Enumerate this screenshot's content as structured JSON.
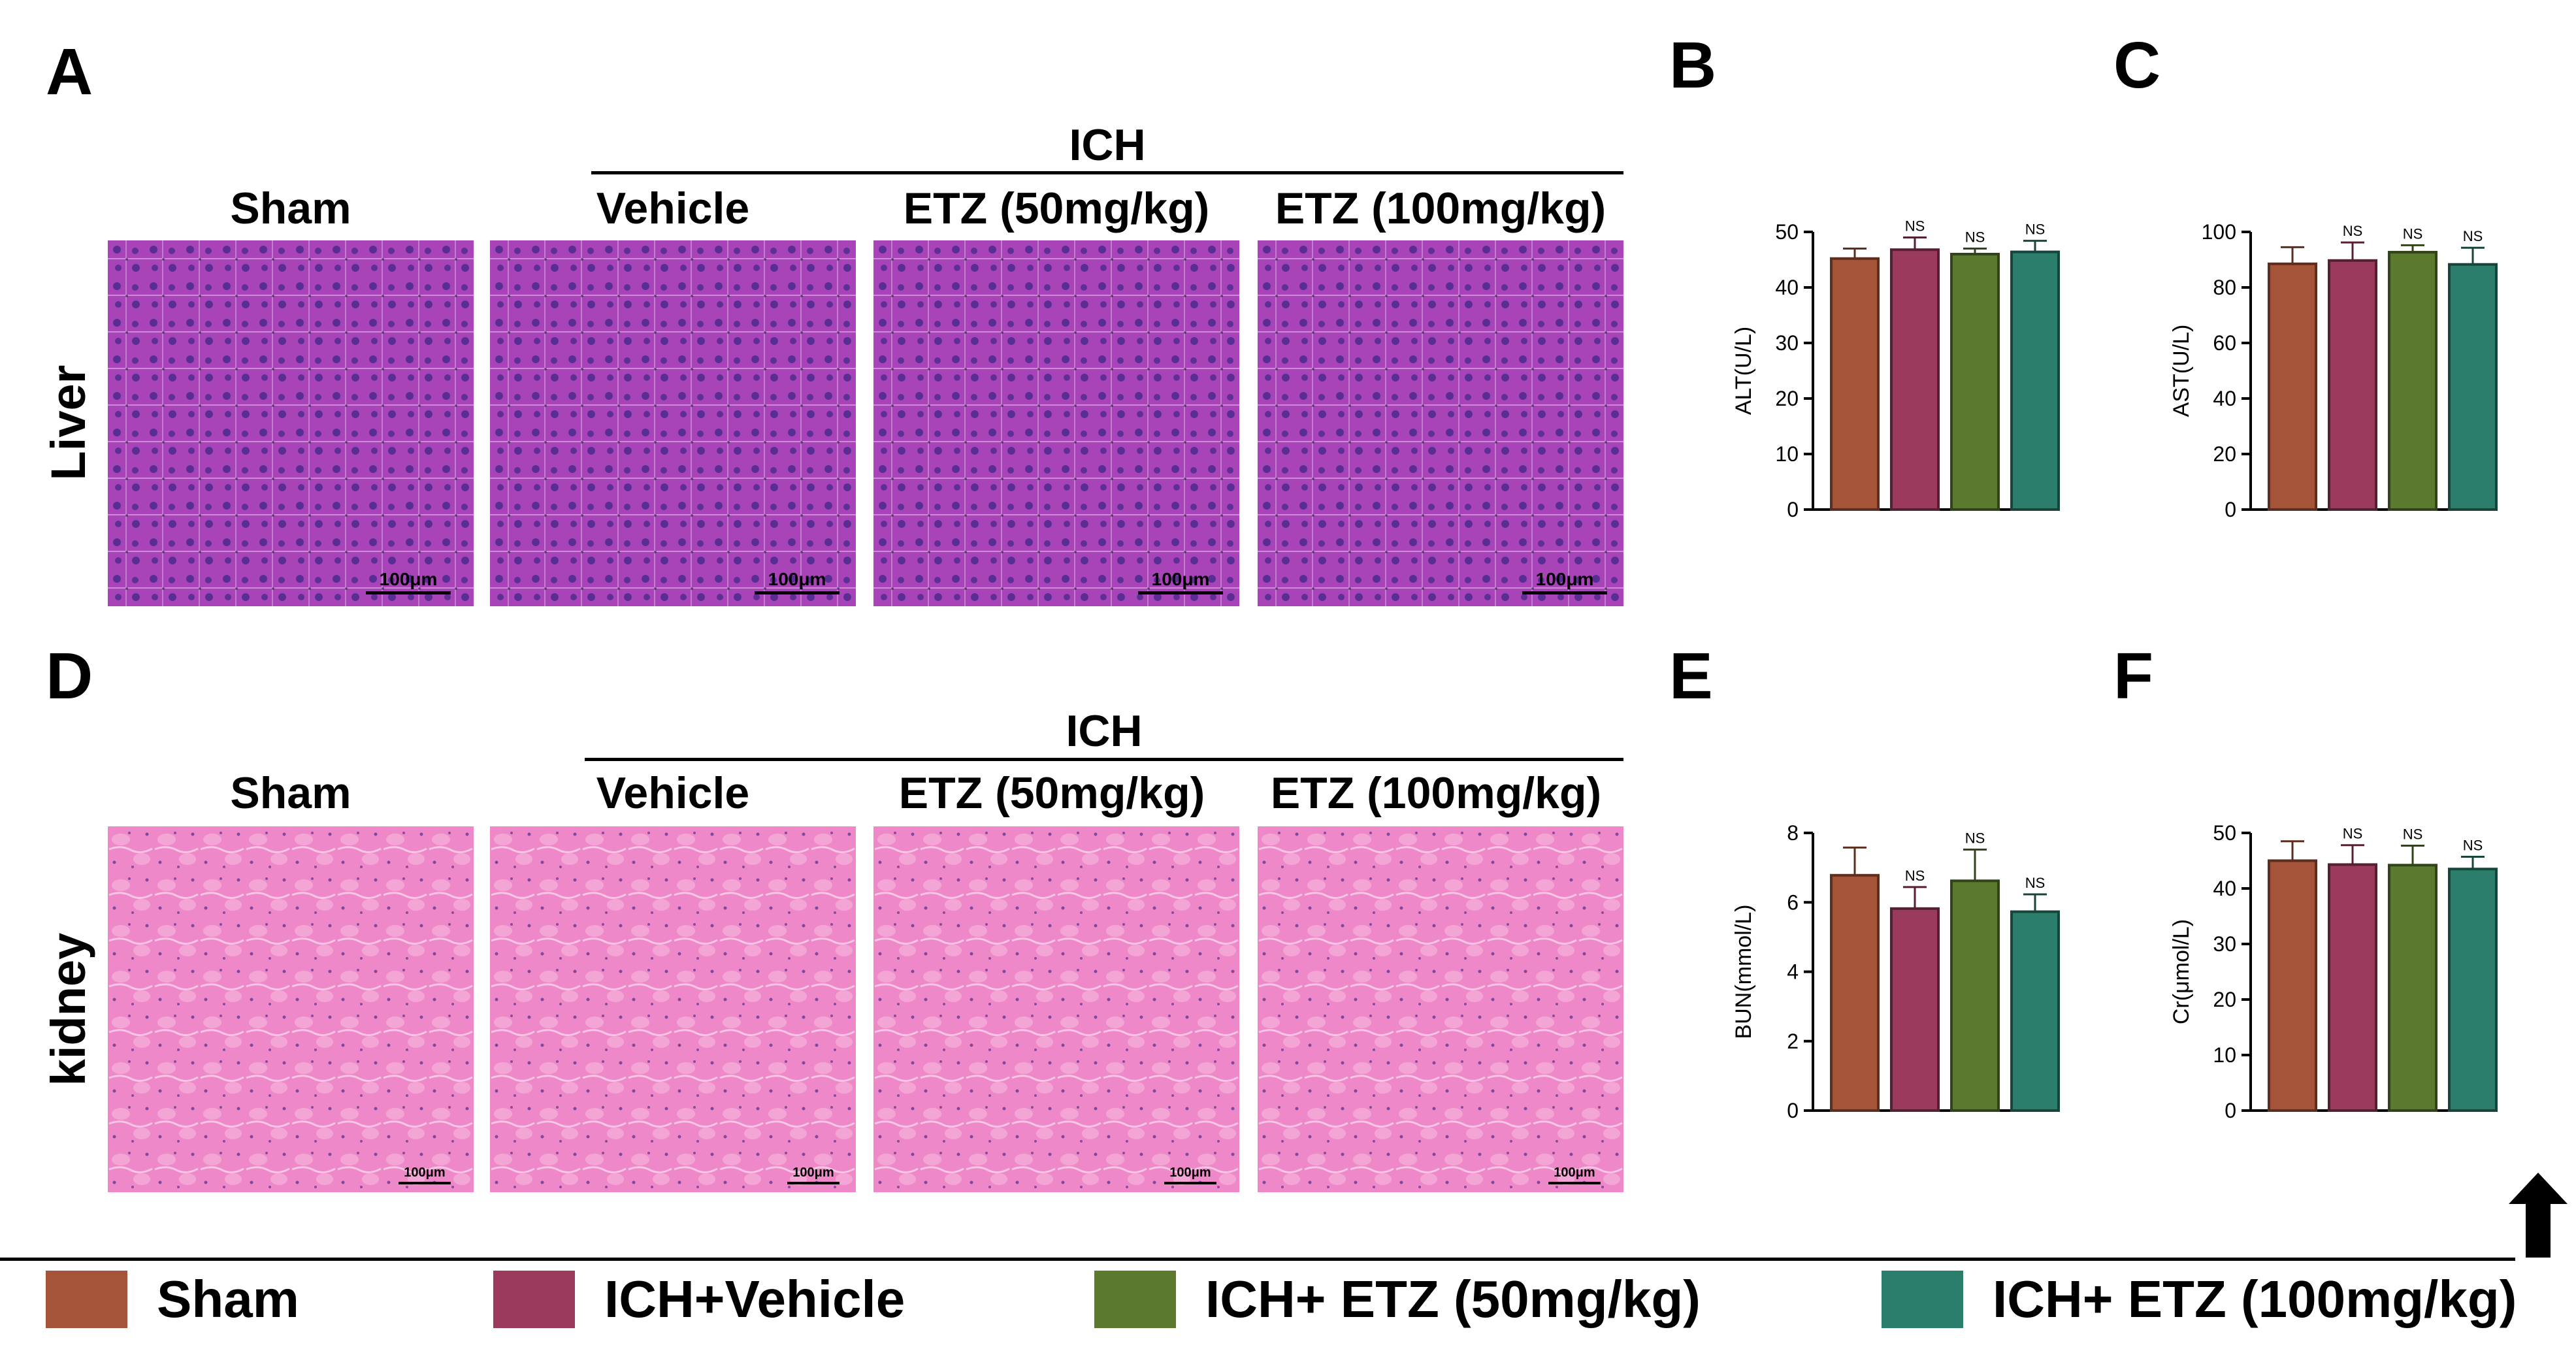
{
  "panels": {
    "A": "A",
    "B": "B",
    "C": "C",
    "D": "D",
    "E": "E",
    "F": "F"
  },
  "histology": {
    "rows": [
      {
        "panel": "A",
        "row_label": "Liver",
        "group_label": "ICH",
        "columns": [
          "Sham",
          "Vehicle",
          "ETZ (50mg/kg)",
          "ETZ (100mg/kg)"
        ],
        "scale_bar": "100μm"
      },
      {
        "panel": "D",
        "row_label": "kidney",
        "group_label": "ICH",
        "columns": [
          "Sham",
          "Vehicle",
          "ETZ (50mg/kg)",
          "ETZ (100mg/kg)"
        ],
        "scale_bar": "100μm"
      }
    ]
  },
  "chart_data": [
    {
      "panel": "B",
      "type": "bar",
      "ylabel": "ALT(U/L)",
      "ylim": [
        0,
        50
      ],
      "yticks": [
        0,
        10,
        20,
        30,
        40,
        50
      ],
      "categories": [
        "Sham",
        "ICH+Vehicle",
        "ICH+ ETZ (50mg/kg)",
        "ICH+ ETZ (100mg/kg)"
      ],
      "values": [
        45.2,
        46.8,
        46.0,
        46.4
      ],
      "errors": [
        1.8,
        2.2,
        1.0,
        2.0
      ],
      "annotations": [
        "",
        "NS",
        "NS",
        "NS"
      ]
    },
    {
      "panel": "C",
      "type": "bar",
      "ylabel": "AST(U/L)",
      "ylim": [
        0,
        100
      ],
      "yticks": [
        0,
        20,
        40,
        60,
        80,
        100
      ],
      "categories": [
        "Sham",
        "ICH+Vehicle",
        "ICH+ ETZ (50mg/kg)",
        "ICH+ ETZ (100mg/kg)"
      ],
      "values": [
        88.5,
        89.7,
        92.7,
        88.3
      ],
      "errors": [
        6.0,
        6.5,
        2.5,
        6.0
      ],
      "annotations": [
        "",
        "NS",
        "NS",
        "NS"
      ]
    },
    {
      "panel": "E",
      "type": "bar",
      "ylabel": "BUN(mmol/L)",
      "ylim": [
        0,
        8
      ],
      "yticks": [
        0,
        2,
        4,
        6,
        8
      ],
      "categories": [
        "Sham",
        "ICH+Vehicle",
        "ICH+ ETZ (50mg/kg)",
        "ICH+ ETZ (100mg/kg)"
      ],
      "values": [
        6.78,
        5.82,
        6.62,
        5.73
      ],
      "errors": [
        0.8,
        0.62,
        0.9,
        0.5
      ],
      "annotations": [
        "",
        "NS",
        "NS",
        "NS"
      ]
    },
    {
      "panel": "F",
      "type": "bar",
      "ylabel": "Cr(μmol/L)",
      "ylim": [
        0,
        50
      ],
      "yticks": [
        0,
        10,
        20,
        30,
        40,
        50
      ],
      "categories": [
        "Sham",
        "ICH+Vehicle",
        "ICH+ ETZ (50mg/kg)",
        "ICH+ ETZ (100mg/kg)"
      ],
      "values": [
        45.0,
        44.3,
        44.2,
        43.5
      ],
      "errors": [
        3.5,
        3.5,
        3.5,
        2.2
      ],
      "annotations": [
        "",
        "NS",
        "NS",
        "NS"
      ]
    }
  ],
  "legend": [
    {
      "label": "Sham",
      "color": "#a65439"
    },
    {
      "label": "ICH+Vehicle",
      "color": "#9c3a5e"
    },
    {
      "label": "ICH+ ETZ (50mg/kg)",
      "color": "#5b7a2e"
    },
    {
      "label": "ICH+ ETZ (100mg/kg)",
      "color": "#2b7e6c"
    }
  ],
  "colors": {
    "liver_base": "#a843b8",
    "liver_nucleus": "#4a2a8f",
    "kidney_base": "#ee88c8",
    "kidney_nucleus": "#6c3d94"
  },
  "icons": {
    "arrow": "up-arrow-icon"
  }
}
